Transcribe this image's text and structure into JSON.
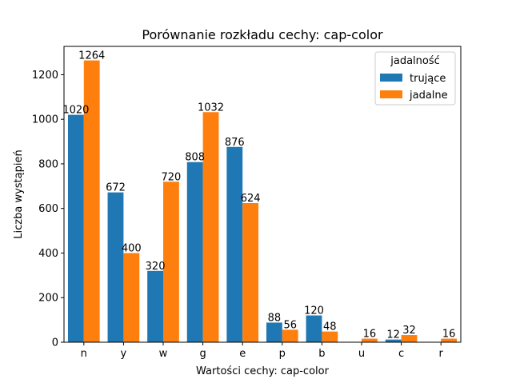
{
  "chart_data": {
    "type": "bar",
    "title": "Porównanie rozkładu cechy: cap-color",
    "xlabel": "Wartości cechy: cap-color",
    "ylabel": "Liczba wystąpień",
    "categories": [
      "n",
      "y",
      "w",
      "g",
      "e",
      "p",
      "b",
      "u",
      "c",
      "r"
    ],
    "series": [
      {
        "name": "trujące",
        "color": "#1f77b4",
        "values": [
          1020,
          672,
          320,
          808,
          876,
          88,
          120,
          0,
          12,
          0
        ],
        "labels": [
          "1020",
          "672",
          "320",
          "808",
          "876",
          "88",
          "120",
          "",
          "12",
          ""
        ]
      },
      {
        "name": "jadalne",
        "color": "#ff7f0e",
        "values": [
          1264,
          400,
          720,
          1032,
          624,
          56,
          48,
          16,
          32,
          16
        ],
        "labels": [
          "1264",
          "400",
          "720",
          "1032",
          "624",
          "56",
          "48",
          "16",
          "32",
          "16"
        ]
      }
    ],
    "yticks": [
      0,
      200,
      400,
      600,
      800,
      1000,
      1200
    ],
    "ylim": [
      0,
      1327
    ],
    "grid": false,
    "legend": {
      "title": "jadalność",
      "position": "top-right"
    }
  }
}
